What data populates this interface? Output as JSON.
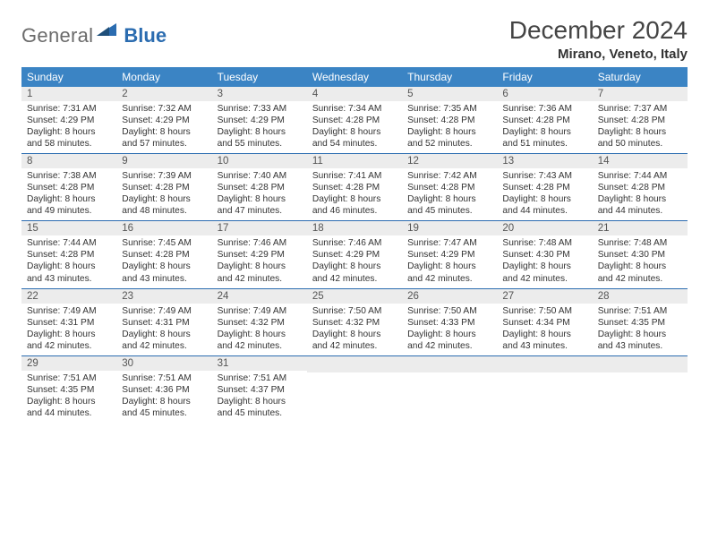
{
  "logo": {
    "text1": "General",
    "text2": "Blue"
  },
  "title": "December 2024",
  "location": "Mirano, Veneto, Italy",
  "colors": {
    "header_bg": "#3b84c4",
    "header_text": "#ffffff",
    "daynum_bg": "#ececec",
    "row_border": "#2b6cb0",
    "logo_gray": "#6b6b6b",
    "logo_blue": "#2b6cb0"
  },
  "weekdays": [
    "Sunday",
    "Monday",
    "Tuesday",
    "Wednesday",
    "Thursday",
    "Friday",
    "Saturday"
  ],
  "weeks": [
    [
      {
        "n": "1",
        "sr": "7:31 AM",
        "ss": "4:29 PM",
        "dl": "8 hours and 58 minutes."
      },
      {
        "n": "2",
        "sr": "7:32 AM",
        "ss": "4:29 PM",
        "dl": "8 hours and 57 minutes."
      },
      {
        "n": "3",
        "sr": "7:33 AM",
        "ss": "4:29 PM",
        "dl": "8 hours and 55 minutes."
      },
      {
        "n": "4",
        "sr": "7:34 AM",
        "ss": "4:28 PM",
        "dl": "8 hours and 54 minutes."
      },
      {
        "n": "5",
        "sr": "7:35 AM",
        "ss": "4:28 PM",
        "dl": "8 hours and 52 minutes."
      },
      {
        "n": "6",
        "sr": "7:36 AM",
        "ss": "4:28 PM",
        "dl": "8 hours and 51 minutes."
      },
      {
        "n": "7",
        "sr": "7:37 AM",
        "ss": "4:28 PM",
        "dl": "8 hours and 50 minutes."
      }
    ],
    [
      {
        "n": "8",
        "sr": "7:38 AM",
        "ss": "4:28 PM",
        "dl": "8 hours and 49 minutes."
      },
      {
        "n": "9",
        "sr": "7:39 AM",
        "ss": "4:28 PM",
        "dl": "8 hours and 48 minutes."
      },
      {
        "n": "10",
        "sr": "7:40 AM",
        "ss": "4:28 PM",
        "dl": "8 hours and 47 minutes."
      },
      {
        "n": "11",
        "sr": "7:41 AM",
        "ss": "4:28 PM",
        "dl": "8 hours and 46 minutes."
      },
      {
        "n": "12",
        "sr": "7:42 AM",
        "ss": "4:28 PM",
        "dl": "8 hours and 45 minutes."
      },
      {
        "n": "13",
        "sr": "7:43 AM",
        "ss": "4:28 PM",
        "dl": "8 hours and 44 minutes."
      },
      {
        "n": "14",
        "sr": "7:44 AM",
        "ss": "4:28 PM",
        "dl": "8 hours and 44 minutes."
      }
    ],
    [
      {
        "n": "15",
        "sr": "7:44 AM",
        "ss": "4:28 PM",
        "dl": "8 hours and 43 minutes."
      },
      {
        "n": "16",
        "sr": "7:45 AM",
        "ss": "4:28 PM",
        "dl": "8 hours and 43 minutes."
      },
      {
        "n": "17",
        "sr": "7:46 AM",
        "ss": "4:29 PM",
        "dl": "8 hours and 42 minutes."
      },
      {
        "n": "18",
        "sr": "7:46 AM",
        "ss": "4:29 PM",
        "dl": "8 hours and 42 minutes."
      },
      {
        "n": "19",
        "sr": "7:47 AM",
        "ss": "4:29 PM",
        "dl": "8 hours and 42 minutes."
      },
      {
        "n": "20",
        "sr": "7:48 AM",
        "ss": "4:30 PM",
        "dl": "8 hours and 42 minutes."
      },
      {
        "n": "21",
        "sr": "7:48 AM",
        "ss": "4:30 PM",
        "dl": "8 hours and 42 minutes."
      }
    ],
    [
      {
        "n": "22",
        "sr": "7:49 AM",
        "ss": "4:31 PM",
        "dl": "8 hours and 42 minutes."
      },
      {
        "n": "23",
        "sr": "7:49 AM",
        "ss": "4:31 PM",
        "dl": "8 hours and 42 minutes."
      },
      {
        "n": "24",
        "sr": "7:49 AM",
        "ss": "4:32 PM",
        "dl": "8 hours and 42 minutes."
      },
      {
        "n": "25",
        "sr": "7:50 AM",
        "ss": "4:32 PM",
        "dl": "8 hours and 42 minutes."
      },
      {
        "n": "26",
        "sr": "7:50 AM",
        "ss": "4:33 PM",
        "dl": "8 hours and 42 minutes."
      },
      {
        "n": "27",
        "sr": "7:50 AM",
        "ss": "4:34 PM",
        "dl": "8 hours and 43 minutes."
      },
      {
        "n": "28",
        "sr": "7:51 AM",
        "ss": "4:35 PM",
        "dl": "8 hours and 43 minutes."
      }
    ],
    [
      {
        "n": "29",
        "sr": "7:51 AM",
        "ss": "4:35 PM",
        "dl": "8 hours and 44 minutes."
      },
      {
        "n": "30",
        "sr": "7:51 AM",
        "ss": "4:36 PM",
        "dl": "8 hours and 45 minutes."
      },
      {
        "n": "31",
        "sr": "7:51 AM",
        "ss": "4:37 PM",
        "dl": "8 hours and 45 minutes."
      },
      null,
      null,
      null,
      null
    ]
  ],
  "labels": {
    "sunrise": "Sunrise:",
    "sunset": "Sunset:",
    "daylight": "Daylight:"
  }
}
